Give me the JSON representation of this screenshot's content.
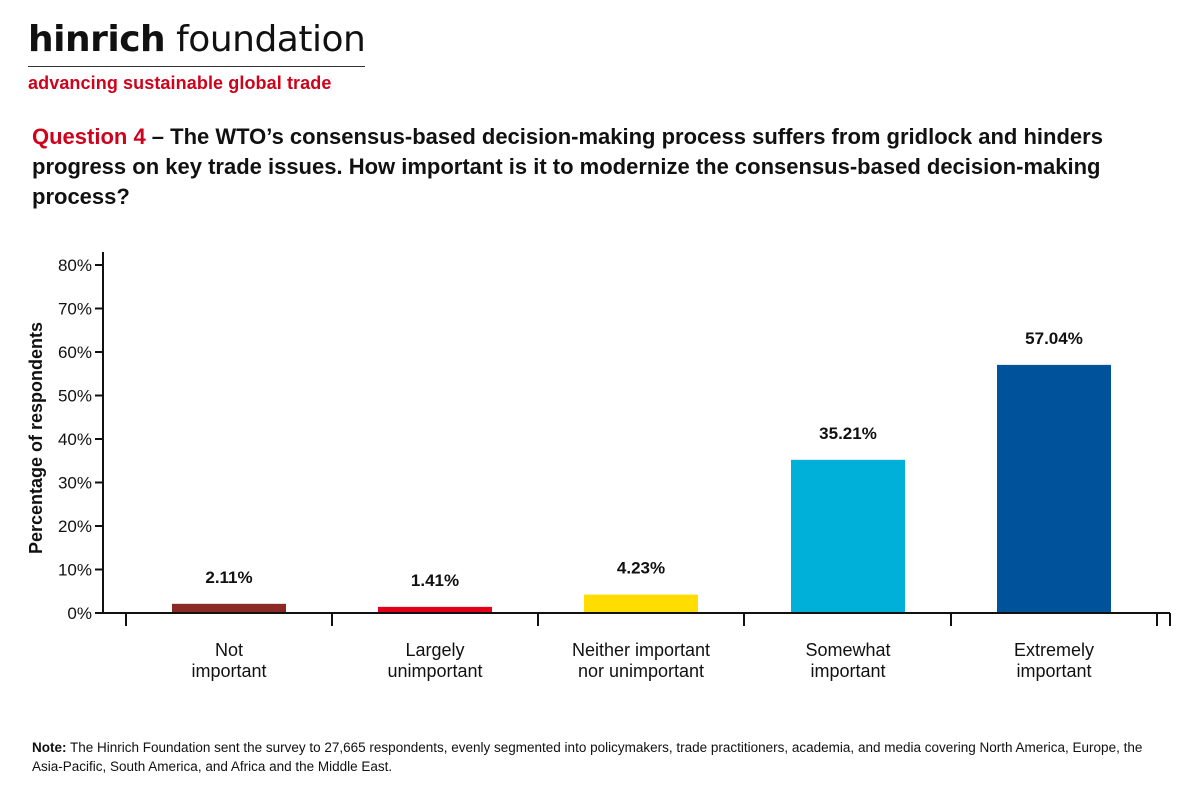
{
  "header": {
    "brand_bold": "hinrich",
    "brand_regular": "foundation",
    "tagline": "advancing sustainable global trade"
  },
  "question": {
    "label": "Question 4",
    "text": " – The WTO’s consensus-based decision-making process suffers from gridlock and hinders progress on key trade issues. How important is it to modernize the consensus-based decision-making process?"
  },
  "note": {
    "label": "Note:",
    "text": " The Hinrich Foundation sent the survey to 27,665 respondents, evenly segmented into policymakers, trade practitioners, academia, and media covering North America, Europe, the Asia-Pacific, South America, and Africa and the Middle East."
  },
  "chart_data": {
    "type": "bar",
    "ylabel": "Percentage of respondents",
    "ylim": [
      0,
      80
    ],
    "yticks": [
      "0%",
      "10%",
      "20%",
      "30%",
      "40%",
      "50%",
      "60%",
      "70%",
      "80%"
    ],
    "categories": [
      [
        "Not",
        "important"
      ],
      [
        "Largely",
        "unimportant"
      ],
      [
        "Neither important",
        "nor unimportant"
      ],
      [
        "Somewhat",
        "important"
      ],
      [
        "Extremely",
        "important"
      ]
    ],
    "values": [
      2.11,
      1.41,
      4.23,
      35.21,
      57.04
    ],
    "data_labels": [
      "2.11%",
      "1.41%",
      "4.23%",
      "35.21%",
      "57.04%"
    ],
    "colors": [
      "#8b2a24",
      "#e2001a",
      "#ffdd00",
      "#00b0d8",
      "#00529b"
    ],
    "grid": false
  }
}
